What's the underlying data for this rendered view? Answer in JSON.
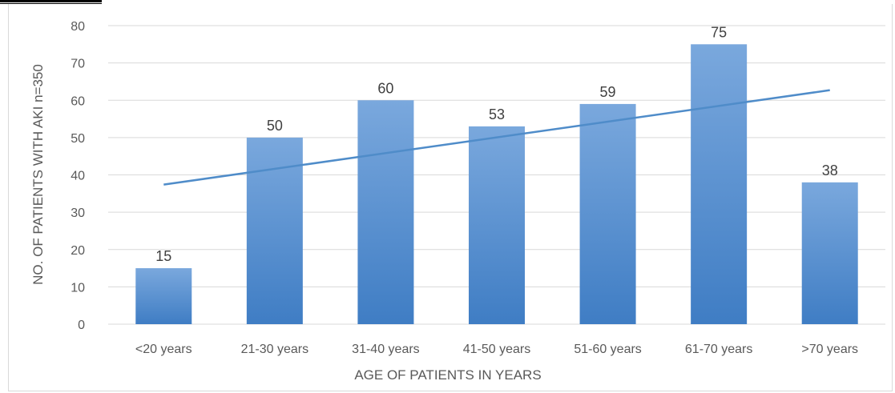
{
  "chart_data": {
    "type": "bar",
    "title": "",
    "xlabel": "AGE OF PATIENTS IN YEARS",
    "ylabel": "NO. OF PATIENTS WITH AKI n=350",
    "categories": [
      "<20 years",
      "21-30 years",
      "31-40 years",
      "41-50 years",
      "51-60 years",
      "61-70 years",
      ">70 years"
    ],
    "values": [
      15,
      50,
      60,
      53,
      59,
      75,
      38
    ],
    "ylim": [
      0,
      80
    ],
    "yticks": [
      "0",
      "10",
      "20",
      "30",
      "40",
      "50",
      "60",
      "70",
      "80"
    ],
    "trendline": {
      "type": "linear",
      "start": 37.4,
      "end": 62.7
    },
    "grid": true,
    "legend": "none",
    "colors": {
      "bar_top": "#7aa8dd",
      "bar_bottom": "#3f7dc4",
      "trendline": "#4f8cc9",
      "grid": "#d9d9d9"
    }
  }
}
